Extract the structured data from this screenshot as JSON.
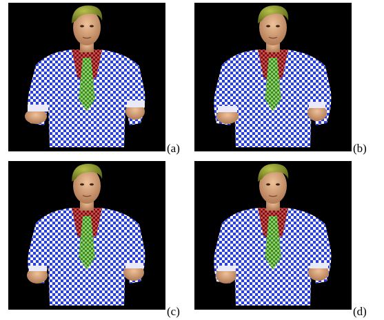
{
  "figure": {
    "panels": [
      {
        "id": "a",
        "label": "(a)",
        "variant": "hands-far"
      },
      {
        "id": "b",
        "label": "(b)",
        "variant": "hands-mid"
      },
      {
        "id": "c",
        "label": "(c)",
        "variant": "hands-near"
      },
      {
        "id": "d",
        "label": "(d)",
        "variant": "hands-closest"
      }
    ],
    "colors": {
      "background": "#000000",
      "hair": "#8a9a2a",
      "skin": "#d9a07a",
      "shirt_red": "#9a1e1e",
      "tie_green": "#5aa83a",
      "checker_blue": "#2a3fd6",
      "checker_white": "#f4f4ff"
    }
  }
}
